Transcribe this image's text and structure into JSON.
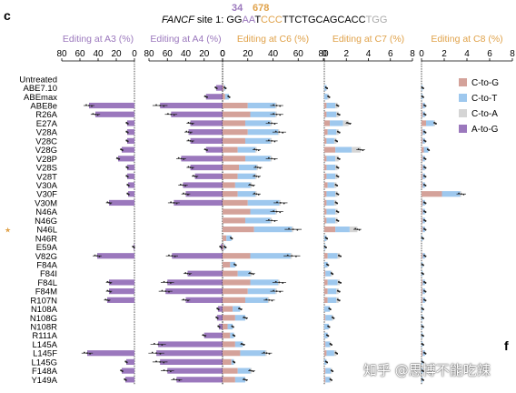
{
  "panel_letter": "c",
  "corner_letter": "f",
  "watermark": "知乎 @思博不能吃辣",
  "colors": {
    "a_to_g": "#9b78bd",
    "c_to_g": "#d4a29a",
    "c_to_t": "#9ec8ee",
    "c_to_a": "#d5d5d5",
    "a_label": "#9b78bd",
    "c_label": "#e0a24a"
  },
  "header": {
    "positions": [
      "34",
      "678"
    ],
    "site_name": "FANCF",
    "site_rest": " site 1: ",
    "sequence": [
      {
        "text": "GG",
        "color": "#000000"
      },
      {
        "text": "AA",
        "color": "#9b78bd"
      },
      {
        "text": "T",
        "color": "#000000"
      },
      {
        "text": "CCC",
        "color": "#e0a24a"
      },
      {
        "text": "TTCTGCAGCACC",
        "color": "#000000"
      },
      {
        "text": "TGG",
        "color": "#aaaaaa"
      }
    ]
  },
  "chart_data": {
    "type": "bar",
    "orientation": "horizontal",
    "categories": [
      "Untreated",
      "ABE7.10",
      "ABEmax",
      "ABE8e",
      "R26A",
      "E27A",
      "V28A",
      "V28C",
      "V28G",
      "V28P",
      "V28S",
      "V28T",
      "V30A",
      "V30F",
      "V30M",
      "N46A",
      "N46G",
      "N46L",
      "N46R",
      "E59A",
      "V82G",
      "F84A",
      "F84I",
      "F84L",
      "F84M",
      "R107N",
      "N108A",
      "N108G",
      "N108R",
      "R111A",
      "L145A",
      "L145F",
      "L145G",
      "F148A",
      "Y149A"
    ],
    "highlight_category": "N46L",
    "legend": [
      "C-to-G",
      "C-to-T",
      "C-to-A",
      "A-to-G"
    ],
    "panels": [
      {
        "title": "Editing at A3 (%)",
        "ticks": [
          80,
          60,
          40,
          20,
          0
        ],
        "xlim": [
          80,
          0
        ],
        "series": {
          "A-to-G": [
            0,
            0,
            0,
            50,
            43,
            8,
            8,
            8,
            14,
            18,
            8,
            8,
            7,
            7,
            28,
            0,
            0,
            0,
            0,
            1,
            41,
            0,
            0,
            28,
            28,
            30,
            0,
            0,
            0,
            0,
            0,
            52,
            9,
            14,
            10
          ]
        }
      },
      {
        "title": "Editing at A4 (%)",
        "ticks": [
          80,
          60,
          40,
          20,
          0
        ],
        "xlim": [
          80,
          0
        ],
        "series": {
          "A-to-G": [
            0,
            7,
            18,
            68,
            56,
            35,
            37,
            35,
            18,
            45,
            35,
            30,
            43,
            40,
            53,
            0,
            0,
            0,
            0,
            2,
            55,
            0,
            38,
            60,
            62,
            40,
            5,
            6,
            4,
            20,
            70,
            72,
            68,
            60,
            50
          ]
        }
      },
      {
        "title": "Editing at C6 (%)",
        "ticks": [
          0,
          20,
          40,
          60,
          80
        ],
        "xlim": [
          0,
          80
        ],
        "series": {
          "C-to-G": [
            0,
            1,
            2,
            20,
            22,
            18,
            20,
            18,
            12,
            18,
            13,
            12,
            10,
            12,
            20,
            22,
            18,
            25,
            3,
            1,
            22,
            6,
            12,
            22,
            20,
            18,
            8,
            10,
            4,
            6,
            10,
            14,
            7,
            12,
            10
          ],
          "C-to-T": [
            0,
            1,
            3,
            22,
            20,
            20,
            24,
            20,
            14,
            20,
            14,
            14,
            12,
            14,
            25,
            20,
            20,
            30,
            4,
            1,
            32,
            4,
            10,
            22,
            22,
            18,
            6,
            8,
            4,
            3,
            6,
            20,
            2,
            10,
            8
          ],
          "C-to-A": [
            0,
            0,
            0,
            1,
            1,
            1,
            1,
            1,
            1,
            1,
            1,
            1,
            1,
            1,
            1,
            1,
            1,
            1,
            0,
            0,
            1,
            0,
            1,
            1,
            1,
            1,
            0,
            0,
            0,
            0,
            0,
            1,
            0,
            1,
            0
          ]
        }
      },
      {
        "title": "Editing at C7 (%)",
        "ticks": [
          0,
          2,
          4,
          6,
          8
        ],
        "xlim": [
          0,
          8
        ],
        "series": {
          "C-to-G": [
            0,
            0,
            0,
            0.2,
            0.2,
            0.5,
            0.3,
            0.2,
            1.0,
            0.2,
            0.2,
            0.2,
            0.3,
            0.2,
            0.2,
            0.2,
            0.2,
            1.0,
            0,
            0,
            0.3,
            0,
            0.1,
            0.3,
            0.3,
            0.3,
            0,
            0.1,
            0,
            0,
            0.1,
            0.2,
            0,
            0.1,
            0.1
          ],
          "C-to-T": [
            0,
            0.2,
            0.3,
            0.8,
            0.9,
            1.2,
            0.8,
            0.7,
            1.5,
            0.8,
            0.8,
            0.8,
            0.6,
            0.8,
            0.7,
            0.8,
            0.8,
            1.3,
            0.2,
            0.1,
            0.9,
            0.3,
            0.5,
            0.9,
            0.8,
            0.8,
            0.5,
            0.6,
            0.4,
            0.3,
            0.4,
            0.7,
            0.2,
            0.5,
            0.4
          ],
          "C-to-A": [
            0,
            0,
            0.1,
            0.2,
            0.2,
            0.5,
            0.2,
            0.2,
            0.8,
            0.3,
            0.2,
            0.2,
            0.2,
            0.2,
            0.2,
            0.2,
            0.2,
            0.7,
            0,
            0,
            0.2,
            0,
            0.1,
            0.2,
            0.2,
            0.2,
            0,
            0.1,
            0,
            0,
            0.1,
            0.2,
            0,
            0.1,
            0.1
          ]
        }
      },
      {
        "title": "Editing at C8 (%)",
        "ticks": [
          0,
          2,
          4,
          6,
          8
        ],
        "xlim": [
          0,
          8
        ],
        "series": {
          "C-to-G": [
            0,
            0,
            0,
            0.1,
            0.1,
            0.4,
            0.1,
            0.1,
            0.2,
            0.1,
            0.1,
            0.1,
            0.1,
            1.8,
            0.1,
            0.1,
            0.1,
            0.1,
            0,
            0,
            0.1,
            0,
            0,
            0.1,
            0.1,
            0.1,
            0,
            0,
            0,
            0,
            0,
            0.1,
            0,
            0,
            0
          ],
          "C-to-T": [
            0,
            0.1,
            0.1,
            0.2,
            0.2,
            0.7,
            0.2,
            0.2,
            0.4,
            0.2,
            0.2,
            0.2,
            0.2,
            1.6,
            0.2,
            0.2,
            0.2,
            0.2,
            0.1,
            0,
            0.2,
            0.1,
            0.1,
            0.2,
            0.2,
            0.2,
            0.1,
            0.1,
            0.1,
            0.1,
            0.1,
            0.2,
            0.1,
            0.1,
            0.1
          ],
          "C-to-A": [
            0,
            0,
            0,
            0,
            0,
            0.1,
            0,
            0,
            0,
            0,
            0,
            0,
            0,
            0.1,
            0,
            0,
            0,
            0,
            0,
            0,
            0,
            0,
            0,
            0,
            0,
            0,
            0,
            0,
            0,
            0,
            0,
            0,
            0,
            0,
            0
          ]
        }
      }
    ]
  }
}
